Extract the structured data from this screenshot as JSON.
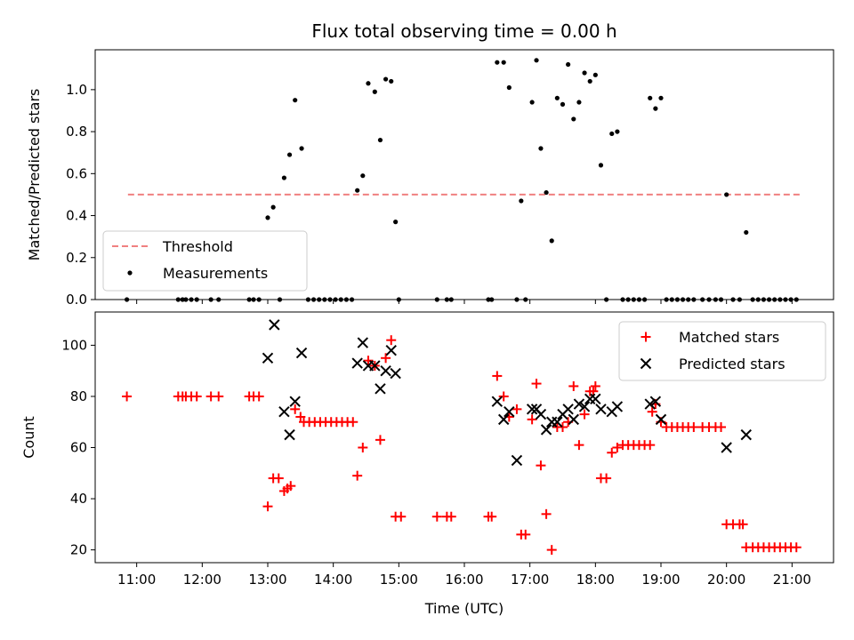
{
  "chart_data": [
    {
      "type": "scatter",
      "title": "Flux total observing time = 0.00 h",
      "xlabel": "",
      "ylabel": "Matched/Predicted stars",
      "xlim": [
        "10:22",
        "21:38"
      ],
      "ylim": [
        0,
        1.19
      ],
      "yticks": [
        0.0,
        0.2,
        0.4,
        0.6,
        0.8,
        1.0
      ],
      "ytick_labels": [
        "0.0",
        "0.2",
        "0.4",
        "0.6",
        "0.8",
        "1.0"
      ],
      "grid": false,
      "legend": {
        "placement": "lower-left",
        "entries": [
          {
            "label": "Threshold",
            "color": "#f08080",
            "style": "dashed"
          },
          {
            "label": "Measurements",
            "color": "#000000",
            "marker": "dot"
          }
        ]
      },
      "threshold": {
        "value": 0.5,
        "x_start": "10:52",
        "x_end": "21:08",
        "color": "#f08080"
      },
      "series": [
        {
          "name": "Measurements",
          "color": "#000000",
          "points": [
            [
              "10:51",
              0
            ],
            [
              "11:38",
              0
            ],
            [
              "11:42",
              0
            ],
            [
              "11:45",
              0
            ],
            [
              "11:50",
              0
            ],
            [
              "11:55",
              0
            ],
            [
              "12:08",
              0
            ],
            [
              "12:15",
              0
            ],
            [
              "12:43",
              0
            ],
            [
              "12:47",
              0
            ],
            [
              "12:52",
              0
            ],
            [
              "13:00",
              0.39
            ],
            [
              "13:05",
              0.44
            ],
            [
              "13:11",
              0
            ],
            [
              "13:15",
              0.58
            ],
            [
              "13:20",
              0.69
            ],
            [
              "13:25",
              0.95
            ],
            [
              "13:31",
              0.72
            ],
            [
              "13:37",
              0
            ],
            [
              "13:42",
              0
            ],
            [
              "13:47",
              0
            ],
            [
              "13:52",
              0
            ],
            [
              "13:57",
              0
            ],
            [
              "14:02",
              0
            ],
            [
              "14:07",
              0
            ],
            [
              "14:12",
              0
            ],
            [
              "14:17",
              0
            ],
            [
              "14:22",
              0.52
            ],
            [
              "14:27",
              0.59
            ],
            [
              "14:32",
              1.03
            ],
            [
              "14:38",
              0.99
            ],
            [
              "14:43",
              0.76
            ],
            [
              "14:48",
              1.05
            ],
            [
              "14:53",
              1.04
            ],
            [
              "14:57",
              0.37
            ],
            [
              "15:00",
              0
            ],
            [
              "15:35",
              0
            ],
            [
              "15:44",
              0
            ],
            [
              "15:48",
              0
            ],
            [
              "16:22",
              0
            ],
            [
              "16:25",
              0
            ],
            [
              "16:30",
              1.13
            ],
            [
              "16:36",
              1.13
            ],
            [
              "16:41",
              1.01
            ],
            [
              "16:48",
              0
            ],
            [
              "16:52",
              0.47
            ],
            [
              "16:56",
              0
            ],
            [
              "17:02",
              0.94
            ],
            [
              "17:06",
              1.14
            ],
            [
              "17:10",
              0.72
            ],
            [
              "17:15",
              0.51
            ],
            [
              "17:20",
              0.28
            ],
            [
              "17:25",
              0.96
            ],
            [
              "17:30",
              0.93
            ],
            [
              "17:35",
              1.12
            ],
            [
              "17:40",
              0.86
            ],
            [
              "17:45",
              0.94
            ],
            [
              "17:50",
              1.08
            ],
            [
              "17:55",
              1.04
            ],
            [
              "18:00",
              1.07
            ],
            [
              "18:05",
              0.64
            ],
            [
              "18:10",
              0
            ],
            [
              "18:15",
              0.79
            ],
            [
              "18:20",
              0.8
            ],
            [
              "18:25",
              0
            ],
            [
              "18:30",
              0
            ],
            [
              "18:35",
              0
            ],
            [
              "18:40",
              0
            ],
            [
              "18:45",
              0
            ],
            [
              "18:50",
              0.96
            ],
            [
              "18:55",
              0.91
            ],
            [
              "19:00",
              0.96
            ],
            [
              "19:05",
              0
            ],
            [
              "19:10",
              0
            ],
            [
              "19:15",
              0
            ],
            [
              "19:20",
              0
            ],
            [
              "19:25",
              0
            ],
            [
              "19:30",
              0
            ],
            [
              "19:38",
              0
            ],
            [
              "19:44",
              0
            ],
            [
              "19:50",
              0
            ],
            [
              "19:55",
              0
            ],
            [
              "20:00",
              0.5
            ],
            [
              "20:06",
              0
            ],
            [
              "20:12",
              0
            ],
            [
              "20:18",
              0.32
            ],
            [
              "20:24",
              0
            ],
            [
              "20:29",
              0
            ],
            [
              "20:34",
              0
            ],
            [
              "20:39",
              0
            ],
            [
              "20:44",
              0
            ],
            [
              "20:49",
              0
            ],
            [
              "20:54",
              0
            ],
            [
              "20:59",
              0
            ],
            [
              "21:04",
              0
            ]
          ]
        }
      ]
    },
    {
      "type": "scatter",
      "title": "",
      "xlabel": "Time (UTC)",
      "ylabel": "Count",
      "xlim": [
        "10:22",
        "21:38"
      ],
      "ylim": [
        15,
        113
      ],
      "xticks": [
        "11:00",
        "12:00",
        "13:00",
        "14:00",
        "15:00",
        "16:00",
        "17:00",
        "18:00",
        "19:00",
        "20:00",
        "21:00"
      ],
      "yticks": [
        20,
        40,
        60,
        80,
        100
      ],
      "ytick_labels": [
        "20",
        "40",
        "60",
        "80",
        "100"
      ],
      "grid": false,
      "legend": {
        "placement": "upper-right",
        "entries": [
          {
            "label": "Matched stars",
            "color": "#ff0000",
            "marker": "plus"
          },
          {
            "label": "Predicted stars",
            "color": "#000000",
            "marker": "x"
          }
        ]
      },
      "series": [
        {
          "name": "Matched stars",
          "color": "#ff0000",
          "marker": "plus",
          "points": [
            [
              "10:51",
              80
            ],
            [
              "11:38",
              80
            ],
            [
              "11:42",
              80
            ],
            [
              "11:45",
              80
            ],
            [
              "11:50",
              80
            ],
            [
              "11:55",
              80
            ],
            [
              "12:08",
              80
            ],
            [
              "12:15",
              80
            ],
            [
              "12:43",
              80
            ],
            [
              "12:47",
              80
            ],
            [
              "12:52",
              80
            ],
            [
              "13:00",
              37
            ],
            [
              "13:05",
              48
            ],
            [
              "13:10",
              48
            ],
            [
              "13:15",
              43
            ],
            [
              "13:18",
              44
            ],
            [
              "13:21",
              45
            ],
            [
              "13:25",
              75
            ],
            [
              "13:30",
              72
            ],
            [
              "13:33",
              70
            ],
            [
              "13:38",
              70
            ],
            [
              "13:43",
              70
            ],
            [
              "13:48",
              70
            ],
            [
              "13:53",
              70
            ],
            [
              "13:58",
              70
            ],
            [
              "14:03",
              70
            ],
            [
              "14:08",
              70
            ],
            [
              "14:13",
              70
            ],
            [
              "14:18",
              70
            ],
            [
              "14:22",
              49
            ],
            [
              "14:27",
              60
            ],
            [
              "14:32",
              94
            ],
            [
              "14:38",
              92
            ],
            [
              "14:43",
              63
            ],
            [
              "14:48",
              95
            ],
            [
              "14:53",
              102
            ],
            [
              "14:57",
              33
            ],
            [
              "15:02",
              33
            ],
            [
              "15:35",
              33
            ],
            [
              "15:44",
              33
            ],
            [
              "15:48",
              33
            ],
            [
              "16:22",
              33
            ],
            [
              "16:25",
              33
            ],
            [
              "16:30",
              88
            ],
            [
              "16:36",
              80
            ],
            [
              "16:41",
              72
            ],
            [
              "16:48",
              75
            ],
            [
              "16:52",
              26
            ],
            [
              "16:56",
              26
            ],
            [
              "17:02",
              71
            ],
            [
              "17:06",
              85
            ],
            [
              "17:10",
              53
            ],
            [
              "17:15",
              34
            ],
            [
              "17:20",
              20
            ],
            [
              "17:25",
              68
            ],
            [
              "17:30",
              68
            ],
            [
              "17:35",
              70
            ],
            [
              "17:40",
              84
            ],
            [
              "17:45",
              61
            ],
            [
              "17:50",
              73
            ],
            [
              "17:55",
              82
            ],
            [
              "17:58",
              82
            ],
            [
              "18:00",
              84
            ],
            [
              "18:05",
              48
            ],
            [
              "18:10",
              48
            ],
            [
              "18:15",
              58
            ],
            [
              "18:20",
              60
            ],
            [
              "18:25",
              61
            ],
            [
              "18:30",
              61
            ],
            [
              "18:35",
              61
            ],
            [
              "18:40",
              61
            ],
            [
              "18:45",
              61
            ],
            [
              "18:50",
              61
            ],
            [
              "18:52",
              74
            ],
            [
              "18:55",
              77
            ],
            [
              "19:00",
              70
            ],
            [
              "19:05",
              68
            ],
            [
              "19:10",
              68
            ],
            [
              "19:15",
              68
            ],
            [
              "19:20",
              68
            ],
            [
              "19:25",
              68
            ],
            [
              "19:30",
              68
            ],
            [
              "19:38",
              68
            ],
            [
              "19:44",
              68
            ],
            [
              "19:50",
              68
            ],
            [
              "19:55",
              68
            ],
            [
              "20:00",
              30
            ],
            [
              "20:06",
              30
            ],
            [
              "20:12",
              30
            ],
            [
              "20:15",
              30
            ],
            [
              "20:18",
              21
            ],
            [
              "20:24",
              21
            ],
            [
              "20:29",
              21
            ],
            [
              "20:34",
              21
            ],
            [
              "20:39",
              21
            ],
            [
              "20:44",
              21
            ],
            [
              "20:49",
              21
            ],
            [
              "20:54",
              21
            ],
            [
              "20:59",
              21
            ],
            [
              "21:04",
              21
            ]
          ]
        },
        {
          "name": "Predicted stars",
          "color": "#000000",
          "marker": "x",
          "points": [
            [
              "13:00",
              95
            ],
            [
              "13:06",
              108
            ],
            [
              "13:15",
              74
            ],
            [
              "13:20",
              65
            ],
            [
              "13:25",
              78
            ],
            [
              "13:31",
              97
            ],
            [
              "14:22",
              93
            ],
            [
              "14:27",
              101
            ],
            [
              "14:32",
              92
            ],
            [
              "14:38",
              92
            ],
            [
              "14:43",
              83
            ],
            [
              "14:48",
              90
            ],
            [
              "14:53",
              98
            ],
            [
              "14:57",
              89
            ],
            [
              "16:30",
              78
            ],
            [
              "16:36",
              71
            ],
            [
              "16:41",
              74
            ],
            [
              "16:48",
              55
            ],
            [
              "17:02",
              75
            ],
            [
              "17:06",
              75
            ],
            [
              "17:10",
              73
            ],
            [
              "17:15",
              67
            ],
            [
              "17:20",
              70
            ],
            [
              "17:25",
              70
            ],
            [
              "17:30",
              73
            ],
            [
              "17:35",
              75
            ],
            [
              "17:40",
              71
            ],
            [
              "17:45",
              77
            ],
            [
              "17:50",
              76
            ],
            [
              "17:55",
              79
            ],
            [
              "18:00",
              79
            ],
            [
              "18:05",
              75
            ],
            [
              "18:15",
              74
            ],
            [
              "18:20",
              76
            ],
            [
              "18:50",
              77
            ],
            [
              "18:55",
              78
            ],
            [
              "19:00",
              71
            ],
            [
              "20:00",
              60
            ],
            [
              "20:18",
              65
            ]
          ]
        }
      ]
    }
  ]
}
